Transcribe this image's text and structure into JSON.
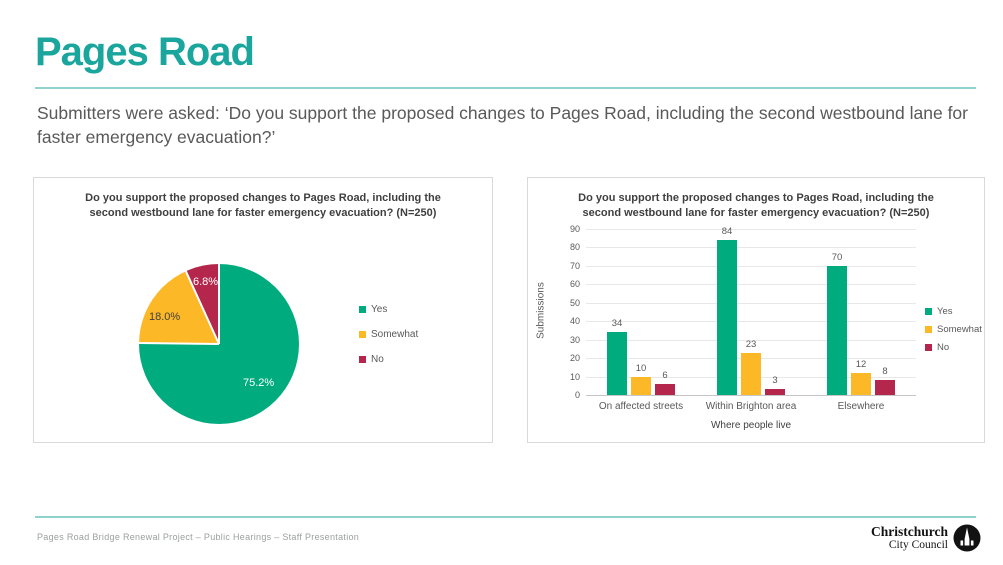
{
  "slide": {
    "title": "Pages Road",
    "subtitle": "Submitters were asked: ‘Do you support the proposed changes to Pages Road, including the second westbound lane for faster emergency evacuation?’",
    "footer": "Pages Road Bridge Renewal Project – Public Hearings – Staff Presentation"
  },
  "logo": {
    "line1": "Christchurch",
    "line2": "City Council",
    "icon": "cathedral-icon"
  },
  "colors": {
    "accent_teal": "#1aa59d",
    "rule_teal": "#8fd1cc",
    "yes_green": "#00ab7e",
    "somewhat_yellow": "#fcb826",
    "no_red": "#b5264d"
  },
  "chart_data": [
    {
      "type": "pie",
      "title": "Do you support the proposed changes to Pages Road, including the second westbound lane for faster emergency evacuation? (N=250)",
      "labels": [
        "Yes",
        "Somewhat",
        "No"
      ],
      "values_percent": [
        75.2,
        18.0,
        6.8
      ],
      "slice_labels": [
        "75.2%",
        "18.0%",
        "6.8%"
      ],
      "colors": [
        "#00ab7e",
        "#fcb826",
        "#b5264d"
      ],
      "start_angle_deg": 0,
      "direction": "clockwise",
      "legend_position": "right"
    },
    {
      "type": "bar",
      "title": "Do you support the proposed changes to Pages Road, including the second westbound lane for faster emergency evacuation? (N=250)",
      "categories": [
        "On affected streets",
        "Within Brighton area",
        "Elsewhere"
      ],
      "series": [
        {
          "name": "Yes",
          "color": "#00ab7e",
          "values": [
            34,
            84,
            70
          ]
        },
        {
          "name": "Somewhat",
          "color": "#fcb826",
          "values": [
            10,
            23,
            12
          ]
        },
        {
          "name": "No",
          "color": "#b5264d",
          "values": [
            6,
            3,
            8
          ]
        }
      ],
      "xlabel": "Where people live",
      "ylabel": "Submissions",
      "ylim": [
        0,
        90
      ],
      "ytick_step": 10,
      "grid": true,
      "legend_position": "right"
    }
  ]
}
